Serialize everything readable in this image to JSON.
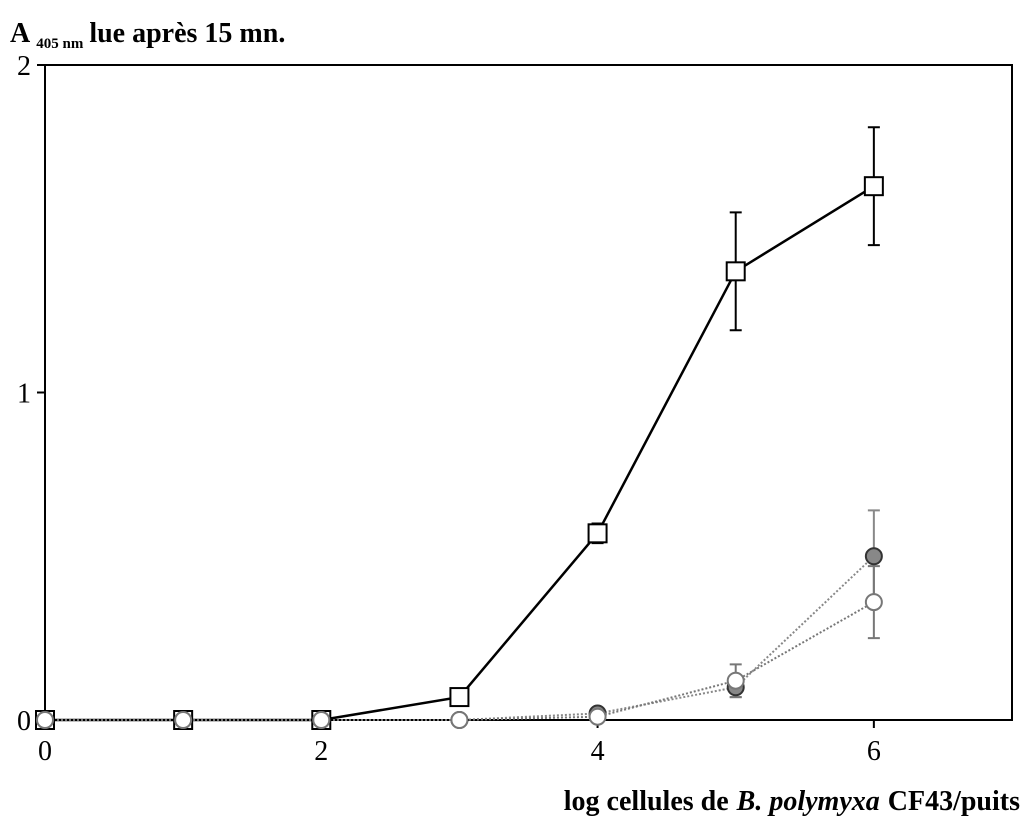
{
  "chart_data": {
    "type": "line",
    "title": {
      "main": "A",
      "sub": "405 nm",
      "rest": "lue après 15 mn."
    },
    "x_label": {
      "before": "log cellules de",
      "italic": "B. polymyxa",
      "after": "CF43/puits"
    },
    "x": [
      0,
      1,
      2,
      3,
      4,
      5,
      6
    ],
    "xlim": [
      0,
      7
    ],
    "xticks": [
      0,
      2,
      4,
      6
    ],
    "ylim": [
      0,
      2
    ],
    "yticks": [
      0,
      1,
      2
    ],
    "series": [
      {
        "marker": "square",
        "color": "#000000",
        "line_style": "solid",
        "values": [
          0,
          0,
          0,
          0.07,
          0.57,
          1.37,
          1.63
        ],
        "errors": [
          null,
          null,
          null,
          null,
          0.03,
          0.18,
          0.18
        ]
      },
      {
        "marker": "filled-circle",
        "color": "#888888",
        "line_style": "dotted",
        "values": [
          0,
          0,
          0,
          0,
          0.02,
          0.1,
          0.5
        ],
        "errors": [
          null,
          null,
          null,
          null,
          null,
          0.03,
          0.14
        ]
      },
      {
        "marker": "open-circle",
        "color": "#777777",
        "line_style": "dotted",
        "values": [
          0,
          0,
          0,
          0,
          0.01,
          0.12,
          0.36
        ],
        "errors": [
          null,
          null,
          null,
          null,
          null,
          0.05,
          0.11
        ]
      }
    ]
  }
}
